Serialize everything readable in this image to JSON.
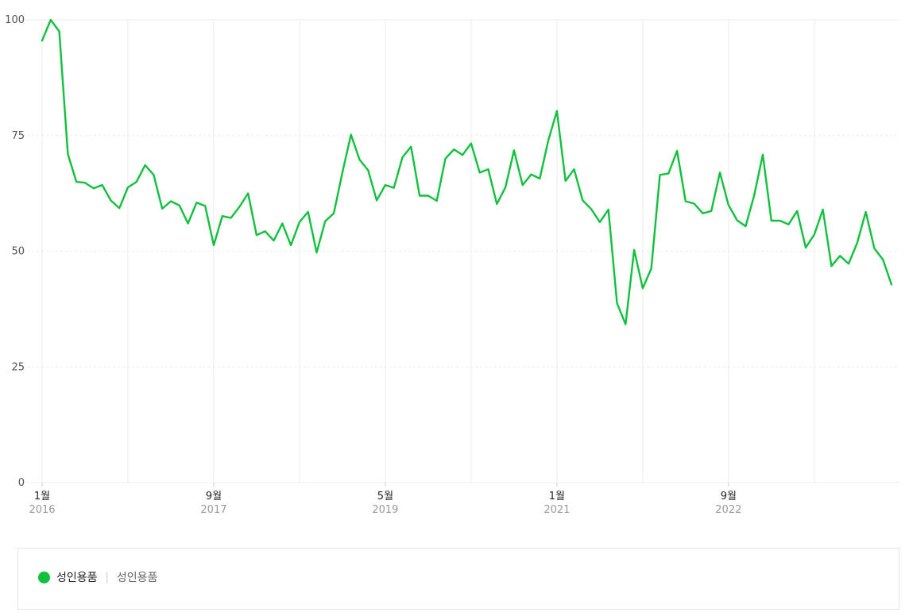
{
  "chart_data": {
    "type": "line",
    "ylim": [
      0,
      100
    ],
    "yticks": [
      "0",
      "25",
      "50",
      "75",
      "100"
    ],
    "grid": true,
    "xtick_labels": [
      {
        "month": "1월",
        "year": "2016",
        "index": 0
      },
      {
        "month": "9월",
        "year": "2017",
        "index": 20
      },
      {
        "month": "5월",
        "year": "2019",
        "index": 40
      },
      {
        "month": "1월",
        "year": "2021",
        "index": 60
      },
      {
        "month": "9월",
        "year": "2022",
        "index": 80
      }
    ],
    "series": [
      {
        "name": "성인용품",
        "color": "#10c13d",
        "values": [
          95.5,
          100,
          97.5,
          71,
          65,
          64.8,
          63.6,
          64.3,
          61,
          59.3,
          63.8,
          65,
          68.6,
          66.5,
          59.2,
          60.8,
          59.9,
          56,
          60.5,
          59.8,
          51.3,
          57.6,
          57.2,
          59.6,
          62.5,
          53.5,
          54.3,
          52.3,
          56,
          51.3,
          56.3,
          58.5,
          49.7,
          56.5,
          58.2,
          67,
          75.2,
          69.8,
          67.5,
          61,
          64.3,
          63.7,
          70.3,
          72.6,
          62,
          62,
          60.9,
          70,
          72,
          70.8,
          73.3,
          67,
          67.7,
          60.2,
          63.8,
          71.8,
          64.3,
          66.6,
          65.7,
          74,
          80.3,
          65.2,
          67.7,
          61,
          59.1,
          56.3,
          59,
          38.8,
          34.2,
          50.3,
          42,
          46.3,
          66.5,
          66.8,
          71.7,
          60.8,
          60.3,
          58.2,
          58.7,
          67,
          60,
          56.7,
          55.4,
          62.1,
          70.9,
          56.6,
          56.6,
          55.8,
          58.7,
          50.8,
          53.6,
          59,
          46.8,
          49,
          47.3,
          51.8,
          58.5,
          50.6,
          48.2,
          42.8
        ]
      }
    ]
  },
  "legend": {
    "name": "성인용품",
    "keyword": "성인용품"
  }
}
